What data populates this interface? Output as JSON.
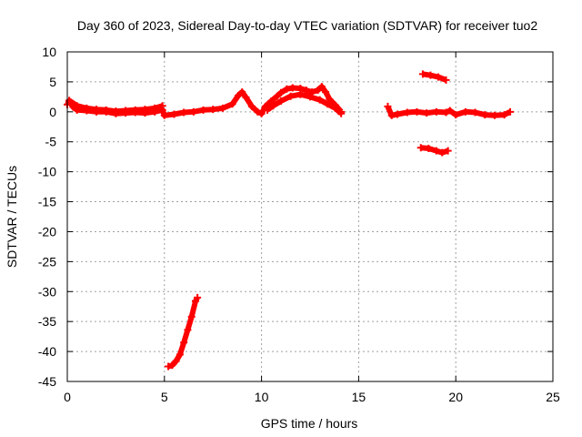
{
  "chart_data": {
    "type": "scatter",
    "title": "Day 360 of 2023, Sidereal Day-to-day VTEC variation (SDTVAR) for receiver tuo2",
    "xlabel": "GPS time / hours",
    "ylabel": "SDTVAR / TECUs",
    "xlim": [
      0,
      25
    ],
    "ylim": [
      -45,
      10
    ],
    "xticks": [
      0,
      5,
      10,
      15,
      20,
      25
    ],
    "yticks": [
      10,
      5,
      0,
      -5,
      -10,
      -15,
      -20,
      -25,
      -30,
      -35,
      -40,
      -45
    ],
    "grid": true,
    "series_color": "#ff0000",
    "series": [
      {
        "name": "main-track",
        "points": [
          [
            0.0,
            1.2
          ],
          [
            0.1,
            1.8
          ],
          [
            0.3,
            0.8
          ],
          [
            0.5,
            0.3
          ],
          [
            1.0,
            0.2
          ],
          [
            1.5,
            0.0
          ],
          [
            2.0,
            0.0
          ],
          [
            2.5,
            -0.3
          ],
          [
            3.0,
            -0.2
          ],
          [
            3.5,
            -0.1
          ],
          [
            4.0,
            -0.2
          ],
          [
            4.5,
            0.0
          ],
          [
            4.9,
            0.3
          ],
          [
            5.0,
            -0.6
          ],
          [
            5.5,
            -0.4
          ],
          [
            6.0,
            -0.1
          ],
          [
            6.5,
            0.0
          ],
          [
            7.0,
            0.3
          ],
          [
            7.5,
            0.4
          ],
          [
            8.0,
            0.6
          ],
          [
            8.5,
            1.3
          ],
          [
            8.8,
            2.7
          ],
          [
            9.0,
            3.3
          ],
          [
            9.2,
            2.4
          ],
          [
            9.5,
            0.9
          ],
          [
            9.8,
            0.0
          ],
          [
            10.0,
            -0.3
          ],
          [
            10.2,
            0.9
          ],
          [
            10.5,
            1.8
          ],
          [
            10.8,
            2.6
          ],
          [
            11.0,
            3.2
          ],
          [
            11.3,
            3.8
          ],
          [
            11.6,
            4.0
          ],
          [
            12.0,
            3.9
          ],
          [
            12.3,
            3.6
          ],
          [
            12.6,
            3.3
          ],
          [
            12.9,
            3.6
          ],
          [
            13.1,
            4.2
          ],
          [
            13.3,
            3.3
          ],
          [
            13.5,
            2.1
          ],
          [
            13.8,
            1.1
          ],
          [
            14.1,
            0.0
          ]
        ]
      },
      {
        "name": "early-upper-band",
        "points": [
          [
            0.1,
            1.9
          ],
          [
            0.5,
            1.0
          ],
          [
            1.0,
            0.6
          ],
          [
            1.5,
            0.4
          ],
          [
            2.0,
            0.3
          ],
          [
            2.5,
            0.1
          ],
          [
            3.0,
            0.2
          ],
          [
            3.5,
            0.3
          ],
          [
            4.0,
            0.4
          ],
          [
            4.5,
            0.6
          ],
          [
            4.9,
            1.0
          ]
        ]
      },
      {
        "name": "midday-lower-band",
        "points": [
          [
            10.3,
            0.3
          ],
          [
            10.6,
            1.0
          ],
          [
            11.0,
            1.8
          ],
          [
            11.5,
            2.6
          ],
          [
            12.0,
            2.9
          ],
          [
            12.5,
            2.5
          ],
          [
            13.0,
            2.0
          ],
          [
            13.4,
            1.3
          ],
          [
            13.8,
            0.6
          ],
          [
            14.1,
            -0.3
          ]
        ]
      },
      {
        "name": "late-track",
        "points": [
          [
            16.5,
            0.9
          ],
          [
            16.7,
            -0.6
          ],
          [
            17.0,
            -0.4
          ],
          [
            17.5,
            -0.1
          ],
          [
            18.0,
            0.0
          ],
          [
            18.5,
            -0.2
          ],
          [
            19.0,
            0.0
          ],
          [
            19.5,
            -0.1
          ],
          [
            19.7,
            0.2
          ],
          [
            20.0,
            -0.5
          ],
          [
            20.5,
            0.0
          ],
          [
            21.0,
            -0.1
          ],
          [
            21.5,
            -0.5
          ],
          [
            22.0,
            -0.6
          ],
          [
            22.5,
            -0.5
          ],
          [
            22.8,
            0.0
          ]
        ]
      },
      {
        "name": "upper-segment",
        "points": [
          [
            18.3,
            6.3
          ],
          [
            18.7,
            6.1
          ],
          [
            19.1,
            5.8
          ],
          [
            19.5,
            5.3
          ]
        ]
      },
      {
        "name": "lower-segment",
        "points": [
          [
            18.2,
            -6.0
          ],
          [
            18.6,
            -6.1
          ],
          [
            19.0,
            -6.5
          ],
          [
            19.3,
            -6.8
          ],
          [
            19.6,
            -6.5
          ]
        ]
      },
      {
        "name": "steep-segment",
        "points": [
          [
            5.2,
            -42.5
          ],
          [
            5.4,
            -42.3
          ],
          [
            5.6,
            -41.6
          ],
          [
            5.8,
            -40.5
          ],
          [
            6.0,
            -38.5
          ],
          [
            6.2,
            -36.4
          ],
          [
            6.4,
            -34.2
          ],
          [
            6.6,
            -31.6
          ],
          [
            6.7,
            -31.0
          ]
        ]
      }
    ]
  }
}
